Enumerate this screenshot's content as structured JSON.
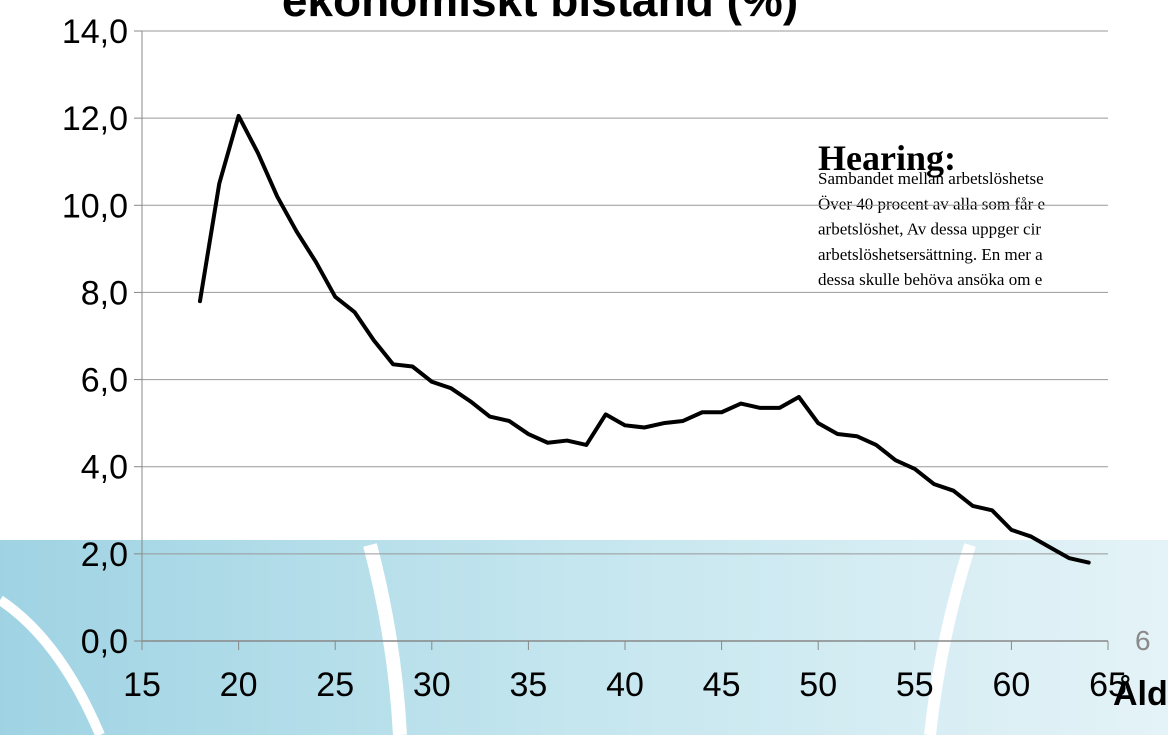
{
  "chart_data": {
    "type": "line",
    "title": "ekonomiskt bistånd (%)",
    "x_label": "Ålder",
    "x": [
      18,
      19,
      20,
      21,
      22,
      23,
      24,
      25,
      26,
      27,
      28,
      29,
      30,
      31,
      32,
      33,
      34,
      35,
      36,
      37,
      38,
      39,
      40,
      41,
      42,
      43,
      44,
      45,
      46,
      47,
      48,
      49,
      50,
      51,
      52,
      53,
      54,
      55,
      56,
      57,
      58,
      59,
      60,
      61,
      62,
      63,
      64
    ],
    "series": [
      {
        "color": "#000000",
        "values": [
          7.8,
          10.5,
          12.05,
          11.2,
          10.2,
          9.4,
          8.7,
          7.9,
          7.55,
          6.9,
          6.35,
          6.3,
          5.95,
          5.8,
          5.5,
          5.15,
          5.05,
          4.75,
          4.55,
          4.6,
          4.5,
          5.2,
          4.95,
          4.9,
          5.0,
          5.05,
          5.25,
          5.25,
          5.45,
          5.35,
          5.35,
          5.6,
          5.0,
          4.75,
          4.7,
          4.5,
          4.15,
          3.95,
          3.6,
          3.45,
          3.1,
          3.0,
          2.55,
          2.4,
          2.15,
          1.9,
          1.8
        ]
      }
    ],
    "xlim": [
      15,
      65
    ],
    "xticks": [
      15,
      20,
      25,
      30,
      35,
      40,
      45,
      50,
      55,
      60,
      65
    ],
    "ylim": [
      0,
      14
    ],
    "yticks": [
      {
        "value": 0,
        "label": "0,0"
      },
      {
        "value": 2,
        "label": "2,0"
      },
      {
        "value": 4,
        "label": "4,0"
      },
      {
        "value": 6,
        "label": "6,0"
      },
      {
        "value": 8,
        "label": "8,0"
      },
      {
        "value": 10,
        "label": "10,0"
      },
      {
        "value": 12,
        "label": "12,0"
      },
      {
        "value": 14,
        "label": "14,0"
      }
    ],
    "grid": true,
    "annotation": {
      "heading": "Hearing:",
      "lines": [
        "Sambandet mellan arbetslöshetse",
        "Över 40 procent av alla som får e",
        "arbetslöshet, Av dessa uppger cir",
        "arbetslöshetsersättning. En mer a",
        "dessa skulle behöva ansöka om e"
      ]
    }
  },
  "slide_number": "6"
}
